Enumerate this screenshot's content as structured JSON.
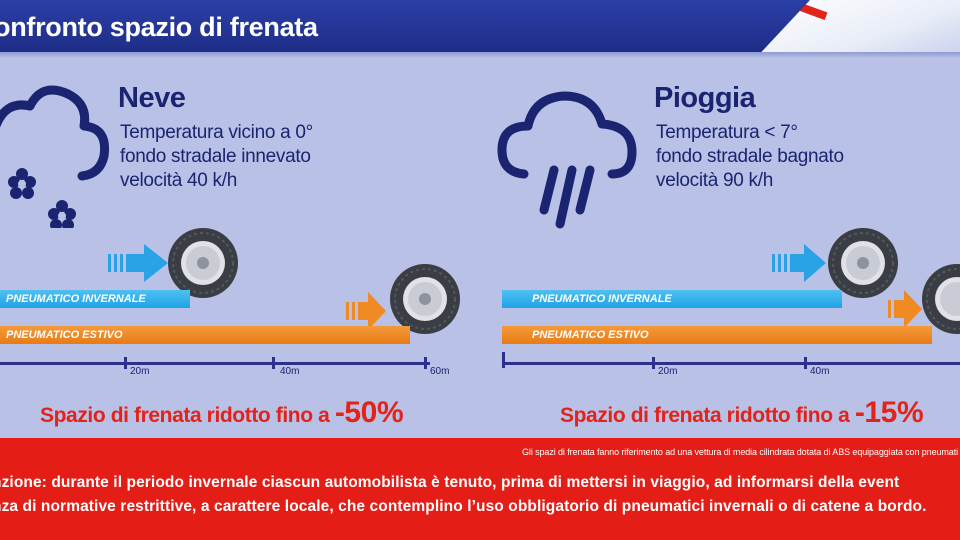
{
  "header": {
    "title": "onfronto spazio di frenata"
  },
  "colors": {
    "navy": "#1e2d87",
    "background": "#b9c1e6",
    "winter_tire_bar": "#1ea3e6",
    "summer_tire_bar": "#e97b14",
    "accent_red": "#e2231a"
  },
  "snow": {
    "icon": "snow-cloud-icon",
    "title": "Neve",
    "lines": [
      "Temperatura vicino a 0°",
      "fondo stradale innevato",
      "velocità 40 k/h"
    ],
    "winter_bar_label": "PNEUMATICO INVERNALE",
    "summer_bar_label": "PNEUMATICO ESTIVO",
    "ticks": [
      "20m",
      "40m",
      "60m"
    ],
    "result_text": "Spazio di frenata ridotto fino a ",
    "result_value": "-50%"
  },
  "rain": {
    "icon": "rain-cloud-icon",
    "title": "Pioggia",
    "lines": [
      "Temperatura < 7°",
      "fondo stradale bagnato",
      "velocità 90 k/h"
    ],
    "winter_bar_label": "PNEUMATICO INVERNALE",
    "summer_bar_label": "PNEUMATICO ESTIVO",
    "ticks": [
      "20m",
      "40m"
    ],
    "result_text": "Spazio di frenata ridotto fino a ",
    "result_value": "-15%"
  },
  "footer": {
    "footnote": "Gli spazi di frenata fanno riferimento ad una vettura di media cilindrata dotata di ABS equipaggiata con pneumati",
    "warning_lines": [
      "nzione: durante il periodo invernale ciascun automobilista è tenuto, prima di mettersi in viaggio, ad  informarsi della event",
      "nza di normative restrittive, a carattere locale, che contemplino l’uso obbligatorio di pneumatici invernali o di catene a bordo."
    ]
  }
}
